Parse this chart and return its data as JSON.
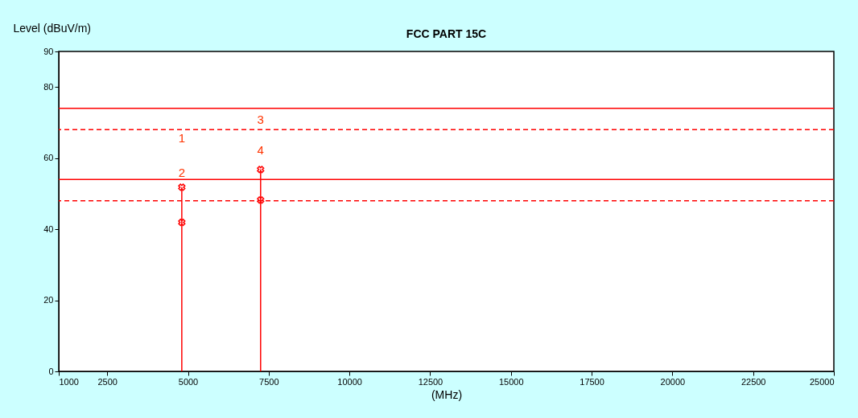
{
  "chart_data": {
    "type": "lollipop",
    "title": "FCC PART 15C",
    "xlabel": "(MHz)",
    "ylabel": "Level (dBuV/m)",
    "xlim": [
      1000,
      25000
    ],
    "xticks": [
      1000,
      2500,
      5000,
      7500,
      10000,
      12500,
      15000,
      17500,
      20000,
      22500,
      25000
    ],
    "x": [
      4810,
      7250
    ],
    "ylim": [
      0,
      90
    ],
    "yticks": [
      0,
      20,
      40,
      60,
      80,
      90
    ],
    "grid": false,
    "marker": "cross",
    "series": [
      {
        "color": "#ff0000",
        "values": [
          51.8,
          56.8
        ]
      },
      {
        "type": "scatter",
        "color": "#ff0000",
        "values": [
          41.9,
          48.2
        ]
      }
    ],
    "ref_lines": [
      {
        "axis": "y",
        "value": 74,
        "color": "#ff0000",
        "line_style": "solid"
      },
      {
        "axis": "y",
        "value": 68,
        "color": "#ff0000",
        "line_style": "dashed"
      },
      {
        "axis": "y",
        "value": 54,
        "color": "#ff0000",
        "line_style": "solid"
      },
      {
        "axis": "y",
        "value": 48,
        "color": "#ff0000",
        "line_style": "dashed"
      }
    ],
    "annotations": [
      "1",
      "2",
      "3",
      "4"
    ]
  }
}
